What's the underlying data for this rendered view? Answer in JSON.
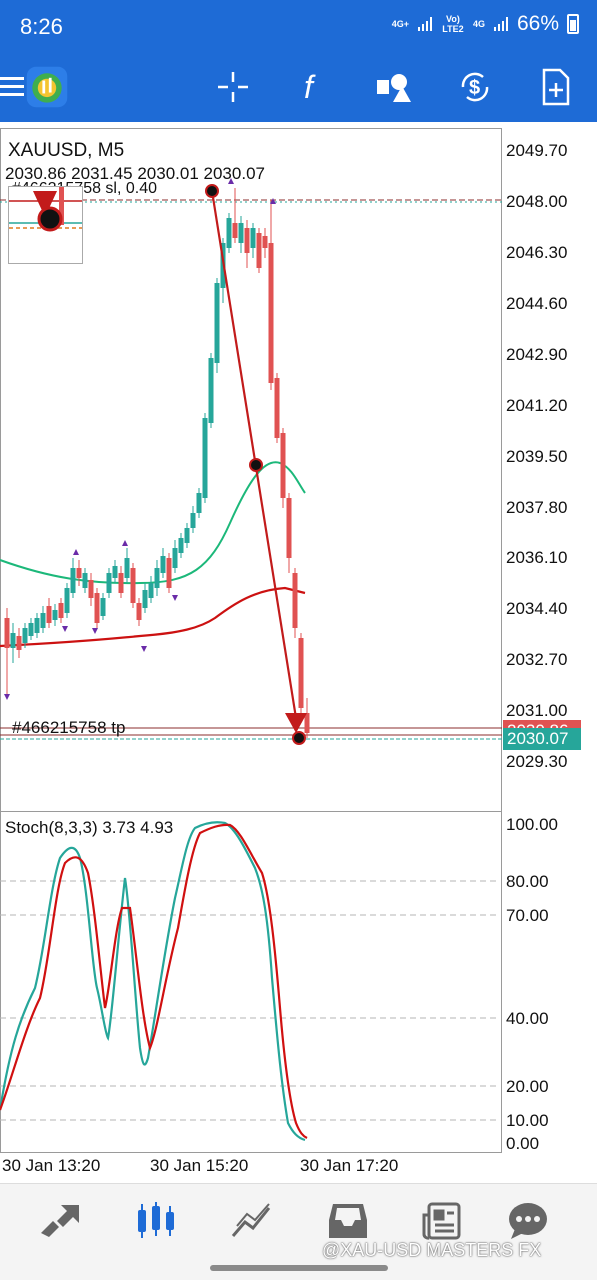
{
  "status_bar": {
    "time": "8:26",
    "network_1": "4G+",
    "network_2": "Vo) LTE2",
    "network_3": "4G",
    "battery": "66%"
  },
  "toolbar": {
    "icons": [
      "menu-icon",
      "mt-logo-icon",
      "crosshair-icon",
      "function-icon",
      "objects-icon",
      "dollar-refresh-icon",
      "new-order-icon"
    ]
  },
  "chart": {
    "symbol": "XAUUSD, M5",
    "ohlc": "2030.86 2031.45 2030.01 2030.07",
    "order_sl_label": "#466215758 sl, 0.40",
    "order_tp_label": "#466215758 tp",
    "price_axis": [
      "2049.70",
      "2048.00",
      "2046.30",
      "2044.60",
      "2042.90",
      "2041.20",
      "2039.50",
      "2037.80",
      "2036.10",
      "2034.40",
      "2032.70",
      "2031.00",
      "2029.30"
    ],
    "bid_tag": "2030.86",
    "ask_tag": "2030.07",
    "bid_color": "#e05252",
    "ask_color": "#26a69a"
  },
  "stochastic": {
    "label": "Stoch(8,3,3) 3.73 4.93",
    "levels": [
      "100.00",
      "80.00",
      "70.00",
      "40.00",
      "20.00",
      "10.00",
      "0.00"
    ]
  },
  "time_axis": [
    "30 Jan 13:20",
    "30 Jan 15:20",
    "30 Jan 17:20"
  ],
  "bottom_nav": {
    "items": [
      "quotes-icon",
      "chart-icon",
      "trade-icon",
      "history-icon",
      "news-icon",
      "chat-icon"
    ],
    "active": "chart-icon"
  },
  "watermark": "@XAU-USD MASTERS FX"
}
